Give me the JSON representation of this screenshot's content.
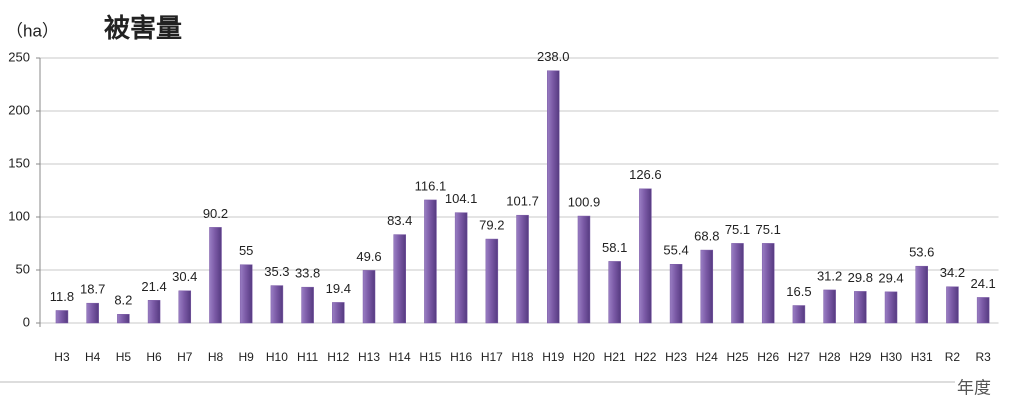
{
  "chart_data": {
    "type": "bar",
    "title": "被害量",
    "y_label": "（ha）",
    "x_label": "年度",
    "categories": [
      "H3",
      "H4",
      "H5",
      "H6",
      "H7",
      "H8",
      "H9",
      "H10",
      "H11",
      "H12",
      "H13",
      "H14",
      "H15",
      "H16",
      "H17",
      "H18",
      "H19",
      "H20",
      "H21",
      "H22",
      "H23",
      "H24",
      "H25",
      "H26",
      "H27",
      "H28",
      "H29",
      "H30",
      "H31",
      "R2",
      "R3"
    ],
    "values": [
      11.8,
      18.7,
      8.2,
      21.4,
      30.4,
      90.2,
      55,
      35.3,
      33.8,
      19.4,
      49.6,
      83.4,
      116.1,
      104.1,
      79.2,
      101.7,
      238.0,
      100.9,
      58.1,
      126.6,
      55.4,
      68.8,
      75.1,
      75.1,
      16.5,
      31.2,
      29.8,
      29.4,
      53.6,
      34.2,
      24.1
    ],
    "value_labels": [
      "11.8",
      "18.7",
      "8.2",
      "21.4",
      "30.4",
      "90.2",
      "55",
      "35.3",
      "33.8",
      "19.4",
      "49.6",
      "83.4",
      "116.1",
      "104.1",
      "79.2",
      "101.7",
      "238.0",
      "100.9",
      "58.1",
      "126.6",
      "55.4",
      "68.8",
      "75.1",
      "75.1",
      "16.5",
      "31.2",
      "29.8",
      "29.4",
      "53.6",
      "34.2",
      "24.1"
    ],
    "color": "#7b5aa6",
    "ylim": [
      0,
      250
    ],
    "yticks": [
      0,
      50,
      100,
      150,
      200,
      250
    ],
    "grid": true
  }
}
